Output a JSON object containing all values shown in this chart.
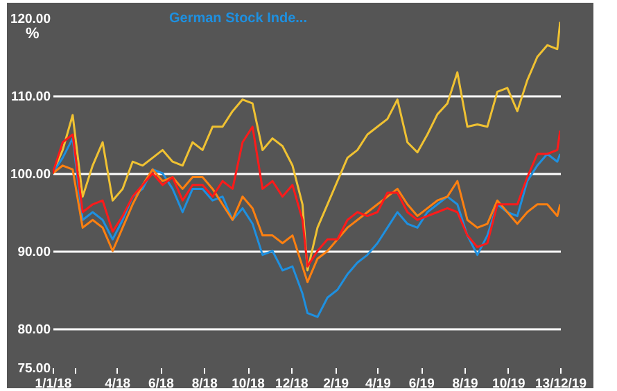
{
  "chart_data": {
    "type": "line",
    "ylabel": "%",
    "legend": "top",
    "grid": "y",
    "line_style": "solid",
    "x": [
      "2018-01-01",
      "2018-01-15",
      "2018-01-29",
      "2018-02-12",
      "2018-02-26",
      "2018-03-12",
      "2018-03-26",
      "2018-04-09",
      "2018-04-23",
      "2018-05-07",
      "2018-05-21",
      "2018-06-04",
      "2018-06-18",
      "2018-07-02",
      "2018-07-16",
      "2018-07-30",
      "2018-08-13",
      "2018-08-27",
      "2018-09-10",
      "2018-09-24",
      "2018-10-08",
      "2018-10-22",
      "2018-11-05",
      "2018-11-19",
      "2018-12-03",
      "2018-12-17",
      "2018-12-24",
      "2019-01-07",
      "2019-01-21",
      "2019-02-04",
      "2019-02-18",
      "2019-03-04",
      "2019-03-18",
      "2019-04-01",
      "2019-04-15",
      "2019-04-29",
      "2019-05-13",
      "2019-05-27",
      "2019-06-10",
      "2019-06-24",
      "2019-07-08",
      "2019-07-22",
      "2019-08-05",
      "2019-08-19",
      "2019-09-02",
      "2019-09-16",
      "2019-09-30",
      "2019-10-14",
      "2019-10-28",
      "2019-11-11",
      "2019-11-25",
      "2019-12-09",
      "2019-12-13"
    ],
    "series": [
      {
        "color": "#f0c232",
        "values": [
          100,
          103,
          107.5,
          97,
          101,
          104,
          96.5,
          98,
          101.5,
          101,
          102,
          103,
          101.5,
          101,
          104,
          103,
          106,
          106,
          108,
          109.5,
          109,
          103,
          104.5,
          103.5,
          101,
          96,
          87.5,
          93,
          96,
          99,
          102,
          103,
          105,
          106,
          107,
          109.5,
          104,
          102.7,
          105,
          107.6,
          109,
          113,
          106,
          106.3,
          106,
          110.5,
          111,
          108,
          112,
          115,
          116.5,
          116,
          119.5
        ]
      },
      {
        "name": "German Stock Inde...",
        "color": "#1e90e0",
        "values": [
          100,
          102,
          104.5,
          94,
          95,
          94,
          91.5,
          94,
          97,
          98,
          100.5,
          100,
          98,
          95,
          98,
          98,
          96.5,
          97,
          94,
          95.5,
          93.5,
          89.5,
          90,
          87.5,
          88,
          84.5,
          82,
          81.5,
          84,
          85,
          87,
          88.5,
          89.5,
          91,
          93,
          95,
          93.5,
          93,
          95,
          96,
          97,
          96,
          92,
          89.5,
          92,
          96,
          95,
          94.5,
          99,
          101,
          102.5,
          101.5,
          102.5
        ]
      },
      {
        "color": "#ff8010",
        "values": [
          100,
          101,
          100.5,
          93,
          94,
          93,
          90,
          93,
          96,
          98.5,
          100.5,
          99,
          99.5,
          98,
          99.5,
          99.5,
          98,
          96,
          94,
          97,
          95.5,
          92,
          92,
          91,
          92,
          88,
          86,
          89,
          90,
          91.5,
          93,
          94,
          95,
          96,
          97,
          98,
          96,
          94.5,
          95.5,
          96.5,
          97,
          99,
          94,
          93,
          93.5,
          96.5,
          95,
          93.5,
          95,
          96,
          96,
          94.5,
          96
        ]
      },
      {
        "color": "#ff1a1a",
        "values": [
          100,
          104,
          105,
          95,
          96,
          96.5,
          92.5,
          94.5,
          97,
          98.5,
          100,
          98.5,
          99.5,
          96.5,
          98.5,
          98.5,
          97,
          99,
          98,
          104,
          106,
          98,
          99,
          97,
          98.5,
          94,
          88,
          90,
          91.5,
          91.5,
          94,
          95,
          94.5,
          95,
          97.5,
          97.5,
          95,
          94,
          94.5,
          95,
          95.5,
          95,
          92,
          90.5,
          91,
          96,
          96,
          96,
          99.5,
          102.5,
          102.5,
          103,
          105.5
        ]
      }
    ],
    "ylim": [
      75,
      120
    ],
    "yticks": [
      {
        "value": 75,
        "label": "75.00"
      },
      {
        "value": 80,
        "label": "80.00"
      },
      {
        "value": 90,
        "label": "90.00"
      },
      {
        "value": 100,
        "label": "100.00"
      },
      {
        "value": 110,
        "label": "110.00"
      },
      {
        "value": 120,
        "label": "120.00"
      }
    ],
    "xlim": [
      "2018-01-01",
      "2019-12-13"
    ],
    "xticks": [
      {
        "value": "2018-01-01",
        "label": "1/1/18"
      },
      {
        "value": "2018-02-01",
        "label": null
      },
      {
        "value": "2018-04-01",
        "label": "4/18"
      },
      {
        "value": "2018-06-01",
        "label": "6/18"
      },
      {
        "value": "2018-08-01",
        "label": "8/18"
      },
      {
        "value": "2018-10-01",
        "label": "10/18"
      },
      {
        "value": "2018-12-01",
        "label": "12/18"
      },
      {
        "value": "2019-02-01",
        "label": "2/19"
      },
      {
        "value": "2019-04-01",
        "label": "4/19"
      },
      {
        "value": "2019-06-01",
        "label": "6/19"
      },
      {
        "value": "2019-08-01",
        "label": "8/19"
      },
      {
        "value": "2019-10-01",
        "label": "10/19"
      },
      {
        "value": "2019-12-13",
        "label": "13/12/19"
      }
    ]
  }
}
